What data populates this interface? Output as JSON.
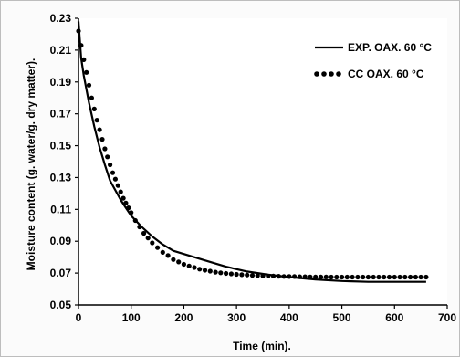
{
  "chart_data": {
    "type": "line",
    "title": "",
    "xlabel": "Time (min).",
    "ylabel": "Moisture content (g. water/g. dry matter).",
    "xlim": [
      0,
      700
    ],
    "ylim": [
      0.05,
      0.23
    ],
    "x_ticks": [
      "0",
      "100",
      "200",
      "300",
      "400",
      "500",
      "600",
      "700"
    ],
    "y_ticks": [
      "0.05",
      "0.07",
      "0.09",
      "0.11",
      "0.13",
      "0.15",
      "0.17",
      "0.19",
      "0.21",
      "0.23"
    ],
    "grid": false,
    "legend_position": "top-right",
    "series": [
      {
        "name": "EXP. OAX. 60 °C",
        "style": "solid",
        "color": "#000000",
        "x": [
          0,
          5,
          10,
          20,
          30,
          40,
          50,
          60,
          70,
          80,
          90,
          100,
          120,
          140,
          160,
          180,
          200,
          240,
          280,
          320,
          360,
          400,
          450,
          500,
          550,
          600,
          660
        ],
        "y": [
          0.228,
          0.205,
          0.194,
          0.177,
          0.162,
          0.149,
          0.138,
          0.128,
          0.122,
          0.116,
          0.111,
          0.106,
          0.099,
          0.093,
          0.088,
          0.084,
          0.082,
          0.078,
          0.074,
          0.071,
          0.069,
          0.0675,
          0.066,
          0.065,
          0.0645,
          0.0645,
          0.0645
        ]
      },
      {
        "name": "CC OAX. 60 °C",
        "style": "dotted",
        "color": "#000000",
        "x": [
          0,
          5,
          10,
          15,
          20,
          25,
          30,
          35,
          40,
          45,
          50,
          55,
          60,
          65,
          70,
          75,
          80,
          85,
          90,
          95,
          100,
          108,
          116,
          124,
          132,
          140,
          150,
          160,
          170,
          180,
          190,
          200,
          210,
          220,
          230,
          240,
          250,
          260,
          270,
          280,
          290,
          300,
          310,
          320,
          330,
          340,
          350,
          360,
          370,
          380,
          390,
          400,
          410,
          420,
          430,
          440,
          450,
          460,
          470,
          480,
          490,
          500,
          510,
          520,
          530,
          540,
          550,
          560,
          570,
          580,
          590,
          600,
          610,
          620,
          630,
          640,
          650,
          660
        ],
        "y": [
          0.222,
          0.213,
          0.204,
          0.196,
          0.188,
          0.18,
          0.173,
          0.166,
          0.16,
          0.154,
          0.148,
          0.143,
          0.138,
          0.133,
          0.129,
          0.125,
          0.121,
          0.117,
          0.114,
          0.111,
          0.108,
          0.103,
          0.099,
          0.095,
          0.092,
          0.089,
          0.086,
          0.083,
          0.081,
          0.0785,
          0.077,
          0.0755,
          0.0745,
          0.0735,
          0.0725,
          0.0718,
          0.0712,
          0.0706,
          0.0702,
          0.0698,
          0.0695,
          0.0692,
          0.069,
          0.0688,
          0.0686,
          0.0684,
          0.0683,
          0.0682,
          0.0681,
          0.068,
          0.0679,
          0.0678,
          0.0678,
          0.0677,
          0.0677,
          0.0676,
          0.0676,
          0.0676,
          0.0676,
          0.0675,
          0.0675,
          0.0675,
          0.0675,
          0.0675,
          0.0675,
          0.0675,
          0.0675,
          0.0675,
          0.0675,
          0.0675,
          0.0675,
          0.0675,
          0.0675,
          0.0675,
          0.0675,
          0.0675,
          0.0675,
          0.0675
        ]
      }
    ]
  }
}
